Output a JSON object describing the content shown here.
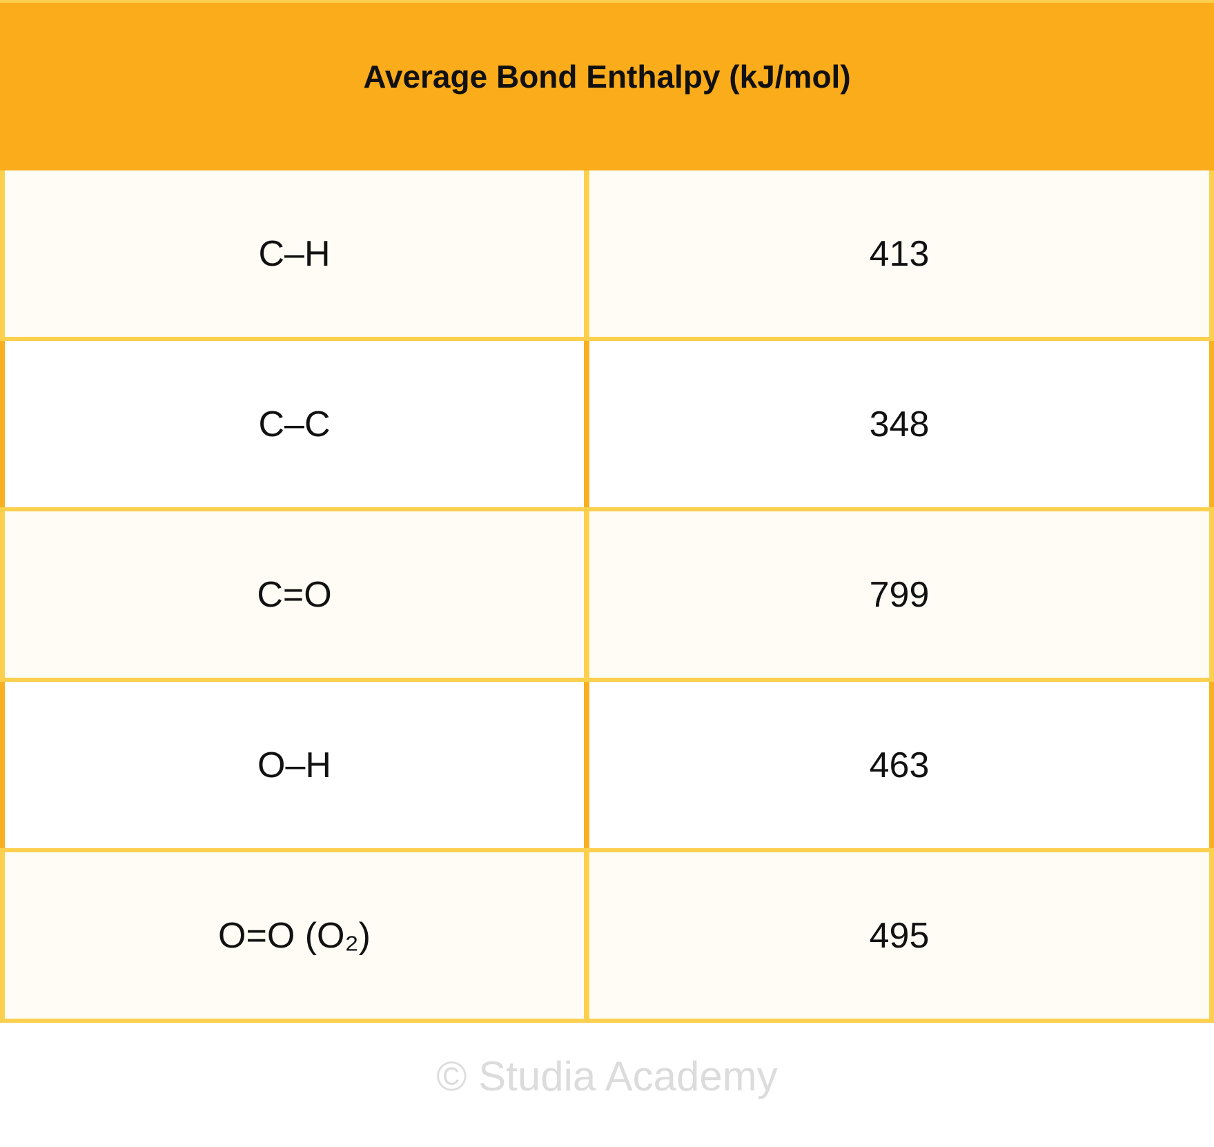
{
  "header": {
    "title": "Average Bond Enthalpy (kJ/mol)"
  },
  "table": {
    "rows": [
      [
        "C–H",
        413
      ],
      [
        "C–C",
        348
      ],
      [
        "C=O",
        799
      ],
      [
        "O–H",
        463
      ],
      [
        "O=O (O₂)",
        495
      ]
    ]
  },
  "footer": {
    "watermark": "© Studia Academy"
  }
}
